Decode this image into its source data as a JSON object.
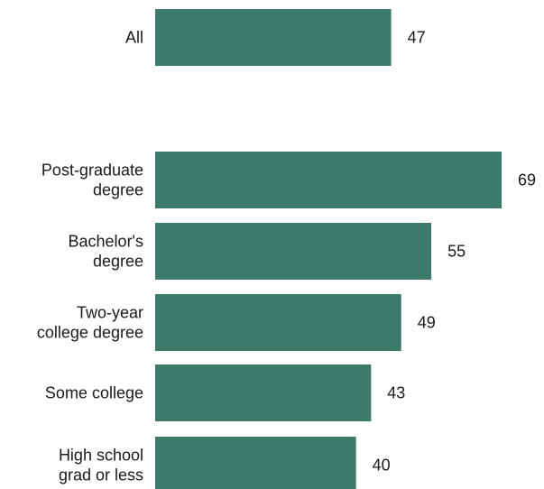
{
  "chart_data": {
    "type": "bar",
    "orientation": "horizontal",
    "categories": [
      [
        "All"
      ],
      [
        "Post-graduate",
        "degree"
      ],
      [
        "Bachelor's",
        "degree"
      ],
      [
        "Two-year",
        "college degree"
      ],
      [
        "Some college"
      ],
      [
        "High school",
        "grad or less"
      ]
    ],
    "values": [
      47,
      69,
      55,
      49,
      43,
      40
    ],
    "data_labels": [
      "47",
      "69",
      "55",
      "49",
      "43",
      "40"
    ],
    "title": "",
    "xlabel": "",
    "ylabel": "",
    "xlim": [
      0,
      69
    ],
    "grid": false,
    "colors": {
      "bar": "#3c7a6a",
      "text": "#1a1a1a"
    }
  }
}
